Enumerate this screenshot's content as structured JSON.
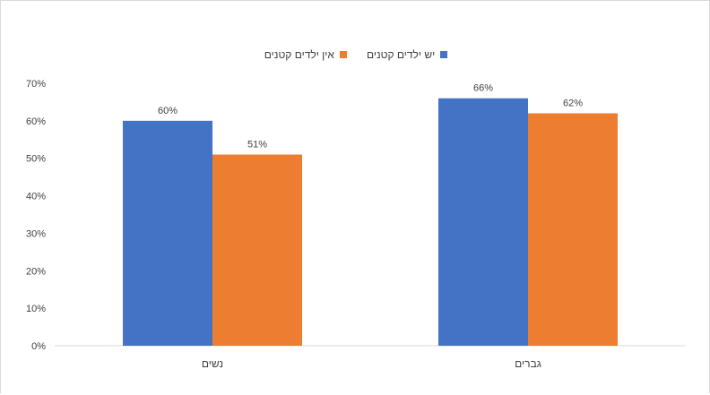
{
  "chart_data": {
    "type": "bar",
    "categories": [
      "נשים",
      "גברים"
    ],
    "series": [
      {
        "name": "יש ילדים קטנים",
        "color": "#4472c4",
        "values": [
          60,
          66
        ],
        "labels": [
          "60%",
          "66%"
        ]
      },
      {
        "name": "אין ילדים קטנים",
        "color": "#ed7d31",
        "values": [
          51,
          62
        ],
        "labels": [
          "51%",
          "62%"
        ]
      }
    ],
    "yticks": [
      "0%",
      "10%",
      "20%",
      "30%",
      "40%",
      "50%",
      "60%",
      "70%"
    ],
    "ylim": [
      0,
      70
    ],
    "title": "",
    "xlabel": "",
    "ylabel": "",
    "grid": false,
    "legend_position": "top"
  }
}
